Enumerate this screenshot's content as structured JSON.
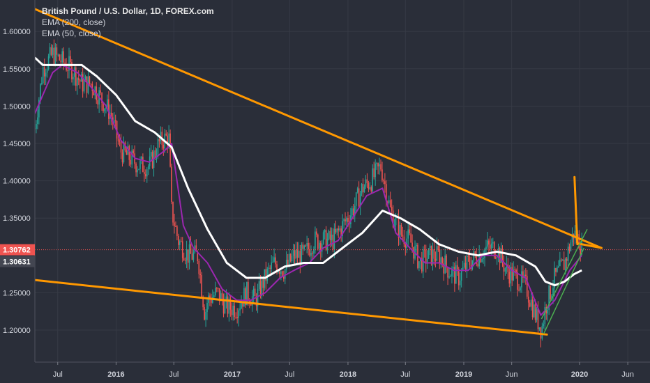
{
  "legend": {
    "title": "British Pound / U.S. Dollar, 1D, FOREX.com",
    "indicators": [
      "EMA (200, close)",
      "EMA (50, close)"
    ]
  },
  "colors": {
    "background": "#2a2e39",
    "grid": "#363a45",
    "bull": "#26a69a",
    "bear": "#ef5350",
    "ema200": "#ffffff",
    "ema50": "#9c27b0",
    "trendline": "#ff9800",
    "channel": "#4caf50",
    "price_badge": "#ef5350",
    "ema_badge": "#434651"
  },
  "chart_data": {
    "type": "line",
    "title": "British Pound / U.S. Dollar, 1D, FOREX.com",
    "x_ticks": [
      "Jul",
      "2016",
      "Jul",
      "2017",
      "Jul",
      "2018",
      "Jul",
      "2019",
      "Jun",
      "2020",
      "Jun"
    ],
    "x_tick_bold": [
      false,
      true,
      false,
      true,
      false,
      true,
      false,
      true,
      false,
      true,
      false
    ],
    "y_ticks": [
      1.6,
      1.55,
      1.5,
      1.45,
      1.4,
      1.35,
      1.25,
      1.2
    ],
    "y_tick_labels": [
      "1.60000",
      "1.55000",
      "1.50000",
      "1.45000",
      "1.40000",
      "1.35000",
      "1.25000",
      "1.20000"
    ],
    "ylim": [
      1.14,
      1.64
    ],
    "x_domain": [
      "2015-04-20",
      "2020-08-10"
    ],
    "grid": true,
    "current_price": {
      "value": 1.30762,
      "label": "1.30762"
    },
    "ema_last": {
      "value": 1.30631,
      "label": "1.30631"
    },
    "price_series": {
      "name": "",
      "x": [
        "2015-04-20",
        "2015-05-15",
        "2015-06-15",
        "2015-07-15",
        "2015-08-15",
        "2015-09-15",
        "2015-10-15",
        "2015-11-15",
        "2015-12-15",
        "2016-01-15",
        "2016-02-15",
        "2016-03-15",
        "2016-04-15",
        "2016-05-15",
        "2016-06-15",
        "2016-06-24",
        "2016-07-15",
        "2016-08-15",
        "2016-09-15",
        "2016-10-07",
        "2016-10-15",
        "2016-11-15",
        "2016-12-15",
        "2017-01-15",
        "2017-02-15",
        "2017-03-15",
        "2017-04-15",
        "2017-05-15",
        "2017-06-15",
        "2017-07-15",
        "2017-08-15",
        "2017-09-15",
        "2017-10-15",
        "2017-11-15",
        "2017-12-15",
        "2018-01-15",
        "2018-02-15",
        "2018-03-15",
        "2018-04-15",
        "2018-05-15",
        "2018-06-15",
        "2018-07-15",
        "2018-08-15",
        "2018-09-15",
        "2018-10-15",
        "2018-11-15",
        "2018-12-15",
        "2019-01-15",
        "2019-02-15",
        "2019-03-15",
        "2019-04-15",
        "2019-05-15",
        "2019-06-15",
        "2019-07-15",
        "2019-08-15",
        "2019-09-03",
        "2019-09-15",
        "2019-10-15",
        "2019-11-15",
        "2019-12-13",
        "2019-12-31",
        "2020-01-08"
      ],
      "y": [
        1.47,
        1.55,
        1.57,
        1.56,
        1.55,
        1.53,
        1.53,
        1.51,
        1.49,
        1.44,
        1.43,
        1.42,
        1.42,
        1.45,
        1.46,
        1.36,
        1.32,
        1.3,
        1.3,
        1.22,
        1.24,
        1.25,
        1.23,
        1.23,
        1.25,
        1.24,
        1.27,
        1.29,
        1.28,
        1.3,
        1.3,
        1.32,
        1.32,
        1.32,
        1.34,
        1.36,
        1.39,
        1.4,
        1.42,
        1.36,
        1.33,
        1.32,
        1.29,
        1.3,
        1.3,
        1.28,
        1.27,
        1.29,
        1.3,
        1.31,
        1.31,
        1.28,
        1.27,
        1.26,
        1.22,
        1.2,
        1.23,
        1.27,
        1.29,
        1.33,
        1.32,
        1.31
      ]
    },
    "series": [
      {
        "name": "EMA (200, close)",
        "x": [
          "2015-04-20",
          "2015-05-15",
          "2015-07-01",
          "2015-09-15",
          "2015-11-01",
          "2016-01-01",
          "2016-03-01",
          "2016-05-01",
          "2016-06-24",
          "2016-08-15",
          "2016-10-15",
          "2016-12-15",
          "2017-02-15",
          "2017-04-15",
          "2017-06-15",
          "2017-08-15",
          "2017-10-15",
          "2017-12-15",
          "2018-02-15",
          "2018-04-20",
          "2018-06-15",
          "2018-08-15",
          "2018-10-15",
          "2018-12-15",
          "2019-02-15",
          "2019-04-15",
          "2019-06-15",
          "2019-08-15",
          "2019-09-15",
          "2019-10-15",
          "2019-11-15",
          "2019-12-15",
          "2020-01-08"
        ],
        "y": [
          1.565,
          1.555,
          1.555,
          1.555,
          1.54,
          1.515,
          1.48,
          1.465,
          1.445,
          1.39,
          1.335,
          1.29,
          1.27,
          1.27,
          1.285,
          1.29,
          1.29,
          1.31,
          1.33,
          1.36,
          1.35,
          1.335,
          1.315,
          1.305,
          1.3,
          1.305,
          1.3,
          1.285,
          1.265,
          1.26,
          1.265,
          1.275,
          1.28
        ]
      },
      {
        "name": "EMA (50, close)",
        "x": [
          "2015-04-20",
          "2015-05-15",
          "2015-06-15",
          "2015-07-15",
          "2015-09-01",
          "2015-10-15",
          "2015-12-01",
          "2016-01-15",
          "2016-03-01",
          "2016-04-15",
          "2016-06-01",
          "2016-06-24",
          "2016-07-31",
          "2016-09-01",
          "2016-10-15",
          "2016-11-30",
          "2017-01-15",
          "2017-03-01",
          "2017-04-15",
          "2017-06-01",
          "2017-07-15",
          "2017-09-01",
          "2017-10-15",
          "2017-12-01",
          "2018-01-15",
          "2018-03-01",
          "2018-04-20",
          "2018-06-01",
          "2018-07-15",
          "2018-09-01",
          "2018-10-15",
          "2018-12-01",
          "2019-01-15",
          "2019-03-01",
          "2019-04-15",
          "2019-06-01",
          "2019-07-15",
          "2019-09-01",
          "2019-10-15",
          "2019-12-01",
          "2020-01-08"
        ],
        "y": [
          1.49,
          1.515,
          1.545,
          1.555,
          1.545,
          1.525,
          1.5,
          1.455,
          1.43,
          1.425,
          1.44,
          1.45,
          1.34,
          1.31,
          1.29,
          1.255,
          1.24,
          1.24,
          1.25,
          1.27,
          1.28,
          1.29,
          1.31,
          1.32,
          1.35,
          1.38,
          1.39,
          1.33,
          1.31,
          1.29,
          1.29,
          1.28,
          1.28,
          1.3,
          1.3,
          1.28,
          1.27,
          1.22,
          1.24,
          1.28,
          1.3
        ]
      }
    ],
    "trendlines": [
      {
        "from": [
          "2015-04-20",
          1.63
        ],
        "to": [
          "2020-03-10",
          1.31
        ]
      },
      {
        "from": [
          "2015-04-20",
          1.267
        ],
        "to": [
          "2019-09-20",
          1.194
        ]
      },
      {
        "from": [
          "2019-12-16",
          1.405
        ],
        "to": [
          "2019-12-25",
          1.315
        ]
      },
      {
        "from": [
          "2019-12-26",
          1.316
        ],
        "to": [
          "2020-03-10",
          1.31
        ]
      }
    ],
    "channel_lines": [
      {
        "from": [
          "2019-09-03",
          1.215
        ],
        "to": [
          "2020-01-25",
          1.335
        ]
      },
      {
        "from": [
          "2019-09-10",
          1.195
        ],
        "to": [
          "2020-01-15",
          1.31
        ]
      }
    ]
  }
}
